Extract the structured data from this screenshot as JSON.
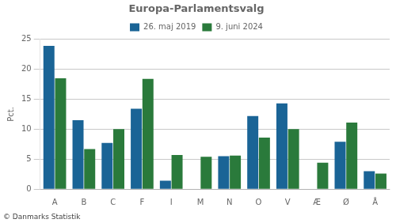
{
  "chart_data": {
    "type": "bar",
    "title": "Europa-Parlamentsvalg",
    "categories": [
      "A",
      "B",
      "C",
      "F",
      "I",
      "M",
      "N",
      "O",
      "V",
      "Æ",
      "Ø",
      "Å"
    ],
    "series": [
      {
        "name": "26. maj 2019",
        "color": "#1a6496",
        "values": [
          23.9,
          11.5,
          7.7,
          13.4,
          1.4,
          0.0,
          5.5,
          12.2,
          14.3,
          0.0,
          7.9,
          3.0
        ]
      },
      {
        "name": "9. juni 2024",
        "color": "#2a7a3b",
        "values": [
          18.5,
          6.7,
          10.0,
          18.4,
          5.7,
          5.4,
          5.6,
          8.6,
          10.0,
          4.4,
          11.1,
          2.6
        ]
      }
    ],
    "ylabel": "Pct.",
    "ylim": [
      0,
      25
    ],
    "yticks": [
      0,
      5,
      10,
      15,
      20,
      25
    ],
    "grid": true,
    "legend": "top",
    "footer": "© Danmarks Statistik"
  }
}
